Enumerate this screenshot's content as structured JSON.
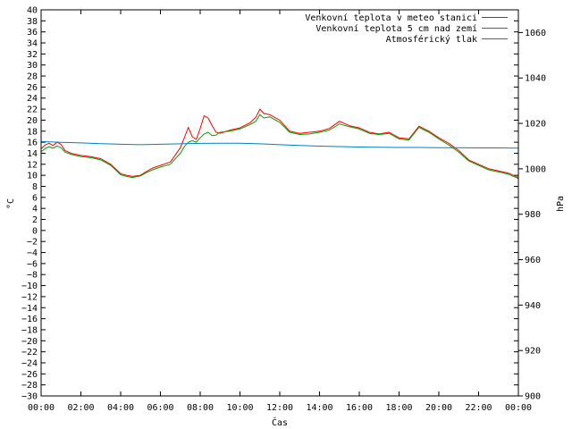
{
  "chart_data": {
    "type": "line",
    "xlabel": "Čas",
    "ylabel_left": "°C",
    "ylabel_right": "hPa",
    "xlim": [
      0,
      24
    ],
    "ylim_left": [
      -30,
      40
    ],
    "ylim_right": [
      900,
      1070
    ],
    "x_ticks": [
      "00:00",
      "02:00",
      "04:00",
      "06:00",
      "08:00",
      "10:00",
      "12:00",
      "14:00",
      "16:00",
      "18:00",
      "20:00",
      "22:00",
      "00:00"
    ],
    "y_ticks_left": [
      -30,
      -28,
      -26,
      -24,
      -22,
      -20,
      -18,
      -16,
      -14,
      -12,
      -10,
      -8,
      -6,
      -4,
      -2,
      0,
      2,
      4,
      6,
      8,
      10,
      12,
      14,
      16,
      18,
      20,
      22,
      24,
      26,
      28,
      30,
      32,
      34,
      36,
      38,
      40
    ],
    "y_ticks_right": [
      900,
      920,
      940,
      960,
      980,
      1000,
      1020,
      1040,
      1060
    ],
    "grid": false,
    "legend_position": "top-right",
    "series": [
      {
        "name": "Venkovní teplota v meteo stanici",
        "axis": "left",
        "color": "#ff0000",
        "x": [
          0,
          0.2,
          0.4,
          0.6,
          0.8,
          1.0,
          1.2,
          1.5,
          2.0,
          2.5,
          3.0,
          3.5,
          4.0,
          4.3,
          4.6,
          5.0,
          5.3,
          5.6,
          6.0,
          6.5,
          7.0,
          7.2,
          7.4,
          7.6,
          7.8,
          8.0,
          8.2,
          8.4,
          8.6,
          8.8,
          9.0,
          9.5,
          10.0,
          10.5,
          10.8,
          11.0,
          11.2,
          11.5,
          12.0,
          12.5,
          13.0,
          13.5,
          14.0,
          14.5,
          15.0,
          15.5,
          16.0,
          16.5,
          17.0,
          17.5,
          18.0,
          18.5,
          19.0,
          19.5,
          20.0,
          20.5,
          21.0,
          21.5,
          22.0,
          22.5,
          23.0,
          23.5,
          24.0
        ],
        "y": [
          14.8,
          15.5,
          15.8,
          15.4,
          16.0,
          15.6,
          14.5,
          14.0,
          13.6,
          13.4,
          13.0,
          12.0,
          10.3,
          10.0,
          9.8,
          10.0,
          10.7,
          11.3,
          11.8,
          12.4,
          15.0,
          16.8,
          18.7,
          17.0,
          16.5,
          18.5,
          20.8,
          20.4,
          19.0,
          17.8,
          17.6,
          18.2,
          18.6,
          19.5,
          20.5,
          22.0,
          21.2,
          21.0,
          20.0,
          18.0,
          17.6,
          17.8,
          18.0,
          18.5,
          19.8,
          19.0,
          18.6,
          17.8,
          17.5,
          17.8,
          16.8,
          16.6,
          18.9,
          18.0,
          16.8,
          15.8,
          14.5,
          12.8,
          12.0,
          11.2,
          10.8,
          10.4,
          9.6
        ]
      },
      {
        "name": "Venkovní teplota 5 cm nad zemí",
        "axis": "left",
        "color": "#00a000",
        "x": [
          0,
          0.2,
          0.4,
          0.6,
          0.8,
          1.0,
          1.2,
          1.5,
          2.0,
          2.5,
          3.0,
          3.5,
          4.0,
          4.3,
          4.6,
          5.0,
          5.3,
          5.6,
          6.0,
          6.5,
          7.0,
          7.2,
          7.4,
          7.6,
          7.8,
          8.0,
          8.2,
          8.4,
          8.6,
          8.8,
          9.0,
          9.5,
          10.0,
          10.5,
          10.8,
          11.0,
          11.2,
          11.5,
          12.0,
          12.5,
          13.0,
          13.5,
          14.0,
          14.5,
          15.0,
          15.5,
          16.0,
          16.5,
          17.0,
          17.5,
          18.0,
          18.5,
          19.0,
          19.5,
          20.0,
          20.5,
          21.0,
          21.5,
          22.0,
          22.5,
          23.0,
          23.5,
          24.0
        ],
        "y": [
          14.3,
          14.8,
          15.2,
          14.9,
          15.3,
          15.0,
          14.2,
          13.8,
          13.4,
          13.2,
          12.8,
          11.8,
          10.1,
          9.8,
          9.6,
          9.9,
          10.5,
          11.0,
          11.5,
          12.0,
          14.0,
          15.2,
          16.0,
          16.3,
          16.0,
          16.8,
          17.5,
          17.8,
          17.2,
          17.3,
          17.8,
          18.0,
          18.4,
          19.2,
          19.8,
          21.0,
          20.4,
          20.6,
          19.6,
          17.8,
          17.4,
          17.5,
          17.8,
          18.2,
          19.3,
          18.8,
          18.4,
          17.6,
          17.4,
          17.6,
          16.6,
          16.4,
          18.7,
          17.8,
          16.6,
          15.5,
          14.2,
          12.6,
          11.8,
          11.0,
          10.6,
          10.2,
          9.4
        ]
      },
      {
        "name": "Atmosférický tlak",
        "axis": "right",
        "color": "#0080c0",
        "x": [
          0,
          1,
          2,
          3,
          4,
          5,
          6,
          7,
          8,
          9,
          10,
          11,
          12,
          13,
          14,
          15,
          16,
          17,
          18,
          19,
          20,
          21,
          22,
          23,
          24
        ],
        "y": [
          1012.0,
          1011.7,
          1011.4,
          1011.1,
          1010.8,
          1010.6,
          1010.8,
          1011.0,
          1011.2,
          1011.3,
          1011.3,
          1011.0,
          1010.6,
          1010.3,
          1010.0,
          1009.8,
          1009.6,
          1009.5,
          1009.4,
          1009.4,
          1009.3,
          1009.3,
          1009.2,
          1009.2,
          1009.1
        ]
      }
    ]
  }
}
